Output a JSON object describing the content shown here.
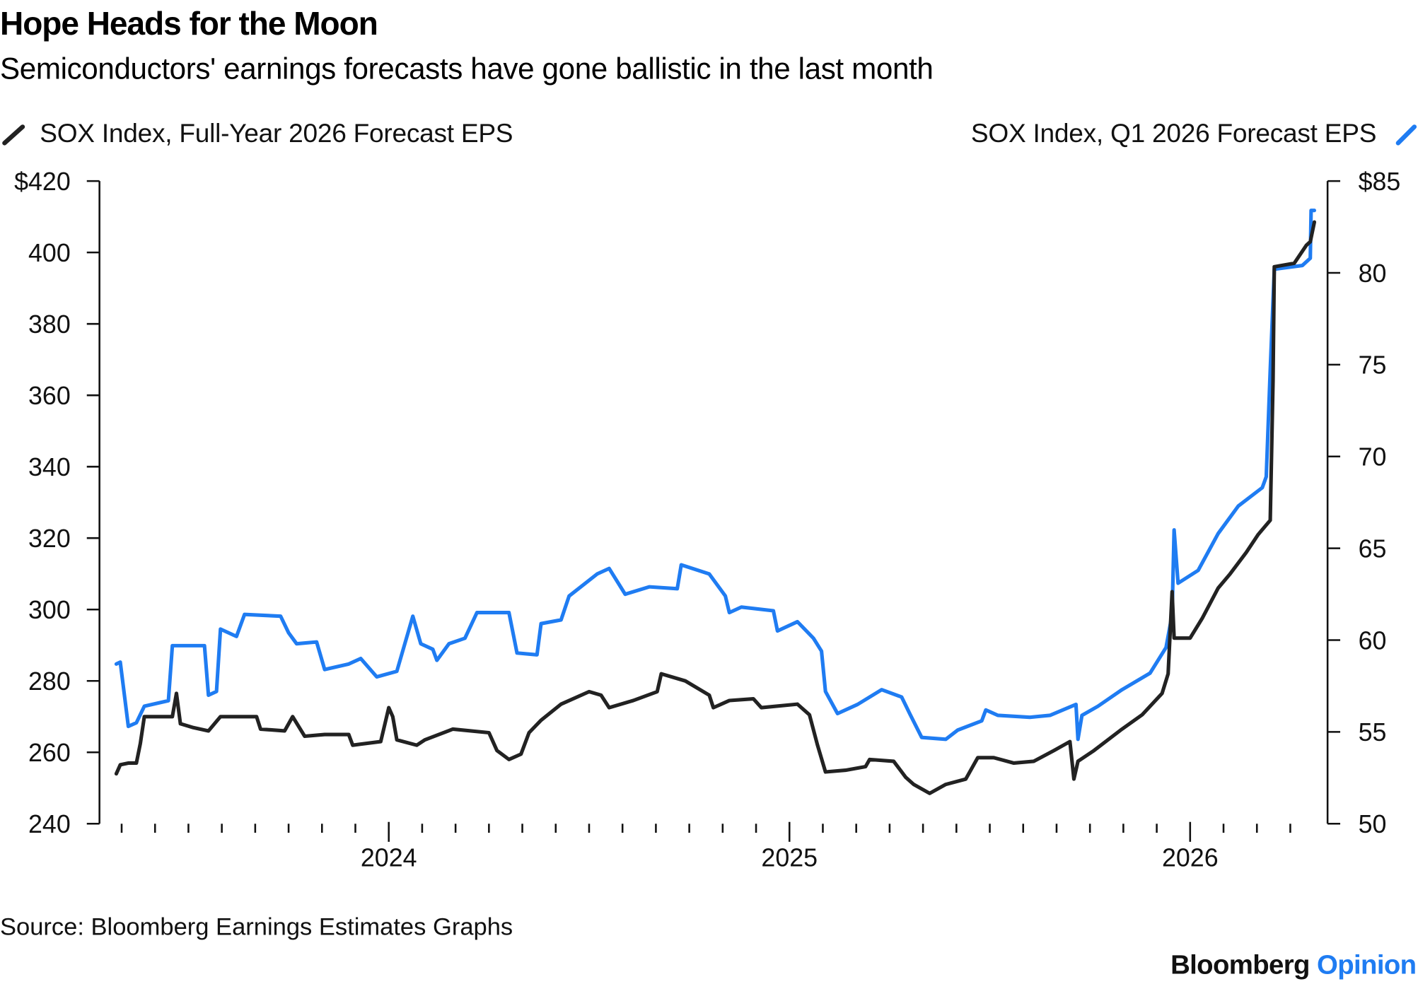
{
  "chart_data": {
    "type": "line",
    "title": "Hope Heads for the Moon",
    "subtitle": "Semiconductors' earnings forecasts have gone ballistic in the last month",
    "source": "Source: Bloomberg Earnings Estimates Graphs",
    "branding": {
      "name": "Bloomberg",
      "suffix": "Opinion"
    },
    "legend_placement": "top",
    "grid": false,
    "xlim": [
      2023.278,
      2026.343
    ],
    "x_tick_labels": [
      {
        "x": 2024,
        "label": "2024"
      },
      {
        "x": 2025,
        "label": "2025"
      },
      {
        "x": 2026,
        "label": "2026"
      }
    ],
    "x_minor_ticks": "monthly",
    "y_left": {
      "ylim": [
        240,
        420
      ],
      "ticks": [
        240,
        260,
        280,
        300,
        320,
        340,
        360,
        380,
        400,
        420
      ],
      "labels": [
        "240",
        "260",
        "280",
        "300",
        "320",
        "340",
        "360",
        "380",
        "400",
        "$420"
      ]
    },
    "y_right": {
      "ylim": [
        50,
        85
      ],
      "ticks": [
        50,
        55,
        60,
        65,
        70,
        75,
        80,
        85
      ],
      "labels": [
        "50",
        "55",
        "60",
        "65",
        "70",
        "75",
        "80",
        "$85"
      ]
    },
    "series": [
      {
        "name": "SOX Index, Full-Year 2026 Forecast EPS",
        "axis": "left",
        "color": "#222222",
        "points": [
          [
            2023.32,
            254
          ],
          [
            2023.33,
            256.5
          ],
          [
            2023.35,
            257
          ],
          [
            2023.37,
            257
          ],
          [
            2023.38,
            262.5
          ],
          [
            2023.39,
            270
          ],
          [
            2023.46,
            270
          ],
          [
            2023.47,
            276.5
          ],
          [
            2023.48,
            268
          ],
          [
            2023.51,
            267
          ],
          [
            2023.55,
            266
          ],
          [
            2023.58,
            270
          ],
          [
            2023.67,
            270
          ],
          [
            2023.68,
            266.5
          ],
          [
            2023.74,
            266
          ],
          [
            2023.76,
            270
          ],
          [
            2023.79,
            264.5
          ],
          [
            2023.84,
            265
          ],
          [
            2023.9,
            265
          ],
          [
            2023.91,
            262
          ],
          [
            2023.98,
            263
          ],
          [
            2024.0,
            272.5
          ],
          [
            2024.01,
            270
          ],
          [
            2024.02,
            263.5
          ],
          [
            2024.07,
            262
          ],
          [
            2024.09,
            263.5
          ],
          [
            2024.16,
            266.5
          ],
          [
            2024.25,
            265.5
          ],
          [
            2024.27,
            260.5
          ],
          [
            2024.3,
            258
          ],
          [
            2024.33,
            259.5
          ],
          [
            2024.35,
            265.5
          ],
          [
            2024.38,
            269
          ],
          [
            2024.43,
            273.5
          ],
          [
            2024.5,
            277
          ],
          [
            2024.53,
            276
          ],
          [
            2024.55,
            272.5
          ],
          [
            2024.61,
            274.5
          ],
          [
            2024.67,
            277
          ],
          [
            2024.68,
            282
          ],
          [
            2024.74,
            280
          ],
          [
            2024.8,
            276
          ],
          [
            2024.81,
            272.5
          ],
          [
            2024.85,
            274.5
          ],
          [
            2024.91,
            275
          ],
          [
            2024.93,
            272.5
          ],
          [
            2025.02,
            273.5
          ],
          [
            2025.05,
            270.5
          ],
          [
            2025.07,
            262
          ],
          [
            2025.09,
            254.5
          ],
          [
            2025.14,
            255
          ],
          [
            2025.19,
            256
          ],
          [
            2025.2,
            258
          ],
          [
            2025.26,
            257.5
          ],
          [
            2025.29,
            253
          ],
          [
            2025.31,
            251
          ],
          [
            2025.35,
            248.5
          ],
          [
            2025.39,
            251
          ],
          [
            2025.44,
            252.5
          ],
          [
            2025.47,
            258.5
          ],
          [
            2025.51,
            258.5
          ],
          [
            2025.56,
            257
          ],
          [
            2025.61,
            257.5
          ],
          [
            2025.66,
            260.5
          ],
          [
            2025.7,
            263
          ],
          [
            2025.71,
            252.5
          ],
          [
            2025.72,
            257.5
          ],
          [
            2025.76,
            260.5
          ],
          [
            2025.83,
            266.5
          ],
          [
            2025.88,
            270.5
          ],
          [
            2025.93,
            276.5
          ],
          [
            2025.945,
            282
          ],
          [
            2025.955,
            305
          ],
          [
            2025.96,
            292
          ],
          [
            2026.0,
            292
          ],
          [
            2026.03,
            297.5
          ],
          [
            2026.07,
            306
          ],
          [
            2026.1,
            310
          ],
          [
            2026.14,
            316
          ],
          [
            2026.17,
            321
          ],
          [
            2026.2,
            325
          ],
          [
            2026.207,
            364
          ],
          [
            2026.21,
            396
          ],
          [
            2026.26,
            397
          ],
          [
            2026.29,
            402
          ],
          [
            2026.3,
            403
          ],
          [
            2026.31,
            408.5
          ]
        ]
      },
      {
        "name": "SOX Index, Q1 2026 Forecast EPS",
        "axis": "right",
        "color": "#1f7cf2",
        "points": [
          [
            2023.32,
            58.7
          ],
          [
            2023.33,
            58.8
          ],
          [
            2023.35,
            55.3
          ],
          [
            2023.37,
            55.5
          ],
          [
            2023.39,
            56.4
          ],
          [
            2023.45,
            56.7
          ],
          [
            2023.46,
            59.7
          ],
          [
            2023.54,
            59.7
          ],
          [
            2023.55,
            57.0
          ],
          [
            2023.57,
            57.2
          ],
          [
            2023.58,
            60.6
          ],
          [
            2023.62,
            60.2
          ],
          [
            2023.64,
            61.4
          ],
          [
            2023.73,
            61.3
          ],
          [
            2023.75,
            60.4
          ],
          [
            2023.77,
            59.8
          ],
          [
            2023.82,
            59.9
          ],
          [
            2023.84,
            58.4
          ],
          [
            2023.9,
            58.7
          ],
          [
            2023.93,
            59.0
          ],
          [
            2023.97,
            58.0
          ],
          [
            2024.02,
            58.3
          ],
          [
            2024.06,
            61.3
          ],
          [
            2024.08,
            59.8
          ],
          [
            2024.11,
            59.5
          ],
          [
            2024.12,
            58.9
          ],
          [
            2024.15,
            59.8
          ],
          [
            2024.19,
            60.1
          ],
          [
            2024.22,
            61.5
          ],
          [
            2024.3,
            61.5
          ],
          [
            2024.32,
            59.3
          ],
          [
            2024.37,
            59.2
          ],
          [
            2024.38,
            60.9
          ],
          [
            2024.43,
            61.1
          ],
          [
            2024.45,
            62.4
          ],
          [
            2024.52,
            63.6
          ],
          [
            2024.55,
            63.9
          ],
          [
            2024.59,
            62.5
          ],
          [
            2024.65,
            62.9
          ],
          [
            2024.72,
            62.8
          ],
          [
            2024.73,
            64.1
          ],
          [
            2024.8,
            63.6
          ],
          [
            2024.84,
            62.4
          ],
          [
            2024.85,
            61.5
          ],
          [
            2024.88,
            61.8
          ],
          [
            2024.96,
            61.6
          ],
          [
            2024.97,
            60.5
          ],
          [
            2025.02,
            61.0
          ],
          [
            2025.06,
            60.1
          ],
          [
            2025.08,
            59.4
          ],
          [
            2025.09,
            57.2
          ],
          [
            2025.12,
            56.0
          ],
          [
            2025.17,
            56.5
          ],
          [
            2025.23,
            57.3
          ],
          [
            2025.28,
            56.9
          ],
          [
            2025.3,
            56.0
          ],
          [
            2025.33,
            54.7
          ],
          [
            2025.39,
            54.6
          ],
          [
            2025.42,
            55.1
          ],
          [
            2025.48,
            55.6
          ],
          [
            2025.49,
            56.2
          ],
          [
            2025.52,
            55.9
          ],
          [
            2025.6,
            55.8
          ],
          [
            2025.65,
            55.9
          ],
          [
            2025.715,
            56.5
          ],
          [
            2025.72,
            54.6
          ],
          [
            2025.73,
            55.9
          ],
          [
            2025.77,
            56.4
          ],
          [
            2025.83,
            57.3
          ],
          [
            2025.9,
            58.2
          ],
          [
            2025.94,
            59.6
          ],
          [
            2025.955,
            61.4
          ],
          [
            2025.96,
            66.0
          ],
          [
            2025.97,
            63.1
          ],
          [
            2026.02,
            63.8
          ],
          [
            2026.07,
            65.8
          ],
          [
            2026.12,
            67.3
          ],
          [
            2026.18,
            68.3
          ],
          [
            2026.19,
            68.9
          ],
          [
            2026.2,
            74.7
          ],
          [
            2026.21,
            80.2
          ],
          [
            2026.28,
            80.4
          ],
          [
            2026.3,
            80.8
          ],
          [
            2026.302,
            83.4
          ],
          [
            2026.31,
            83.4
          ]
        ]
      }
    ]
  }
}
